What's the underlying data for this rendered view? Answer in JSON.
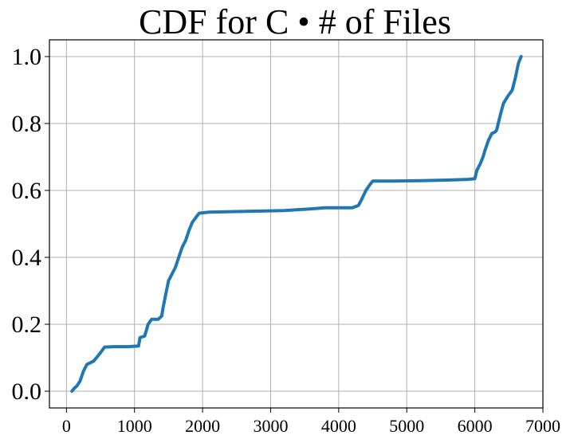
{
  "chart_data": {
    "type": "line",
    "title": "CDF for C • # of Files",
    "xlabel": "",
    "ylabel": "",
    "xlim": [
      -250,
      7000
    ],
    "ylim": [
      -0.05,
      1.05
    ],
    "grid": true,
    "x_ticks": [
      0,
      1000,
      2000,
      3000,
      4000,
      5000,
      6000,
      7000
    ],
    "y_ticks": [
      0.0,
      0.2,
      0.4,
      0.6,
      0.8,
      1.0
    ],
    "x_tick_labels": [
      "0",
      "1000",
      "2000",
      "3000",
      "4000",
      "5000",
      "6000",
      "7000"
    ],
    "y_tick_labels": [
      "0.0",
      "0.2",
      "0.4",
      "0.6",
      "0.8",
      "1.0"
    ],
    "colors": {
      "series": "#1f77b4",
      "grid": "#b0b0b0"
    },
    "series": [
      {
        "x": [
          80,
          120,
          150,
          200,
          250,
          300,
          400,
          500,
          560,
          700,
          900,
          1060,
          1080,
          1150,
          1200,
          1250,
          1350,
          1400,
          1420,
          1450,
          1500,
          1550,
          1600,
          1650,
          1700,
          1750,
          1800,
          1850,
          1950,
          2100,
          2500,
          2800,
          3200,
          3600,
          3800,
          4200,
          4290,
          4330,
          4400,
          4450,
          4500,
          4800,
          5200,
          5600,
          5900,
          6000,
          6030,
          6080,
          6120,
          6150,
          6200,
          6250,
          6300,
          6320,
          6380,
          6420,
          6480,
          6550,
          6600,
          6640,
          6680
        ],
        "y": [
          0.0,
          0.01,
          0.015,
          0.03,
          0.06,
          0.08,
          0.09,
          0.115,
          0.132,
          0.133,
          0.133,
          0.135,
          0.16,
          0.165,
          0.2,
          0.215,
          0.215,
          0.225,
          0.25,
          0.28,
          0.33,
          0.35,
          0.37,
          0.4,
          0.43,
          0.45,
          0.48,
          0.505,
          0.532,
          0.535,
          0.537,
          0.538,
          0.54,
          0.545,
          0.548,
          0.548,
          0.555,
          0.57,
          0.6,
          0.615,
          0.628,
          0.628,
          0.629,
          0.631,
          0.633,
          0.635,
          0.66,
          0.68,
          0.7,
          0.72,
          0.75,
          0.77,
          0.775,
          0.78,
          0.83,
          0.86,
          0.88,
          0.9,
          0.94,
          0.98,
          1.0
        ]
      }
    ]
  }
}
